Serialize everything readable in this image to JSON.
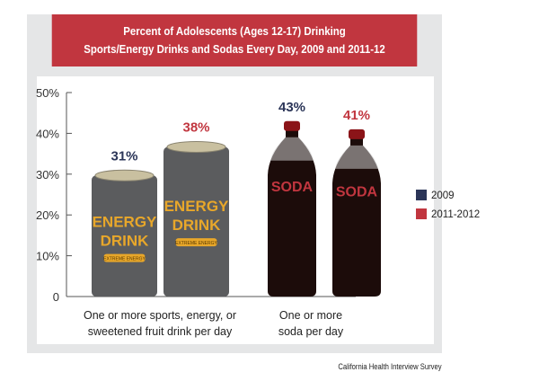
{
  "chart_data": {
    "type": "bar",
    "title_lines": [
      "Percent of Adolescents (Ages 12-17) Drinking",
      "Sports/Energy Drinks and Sodas Every Day, 2009 and 2011-12"
    ],
    "categories": [
      [
        "One or more sports, energy, or",
        "sweetened fruit drink per day"
      ],
      [
        "One or more",
        "soda per day"
      ]
    ],
    "series": [
      {
        "name": "2009",
        "color": "#2b3558",
        "values": [
          31,
          43
        ]
      },
      {
        "name": "2011-2012",
        "color": "#c1363f",
        "values": [
          38,
          41
        ]
      }
    ],
    "data_labels": [
      [
        "31%",
        "43%"
      ],
      [
        "38%",
        "41%"
      ]
    ],
    "y_ticks": [
      "0",
      "10%",
      "20%",
      "30%",
      "40%",
      "50%"
    ],
    "ylim": [
      0,
      50
    ],
    "legend_position": "right",
    "bar_images": [
      "energy-drink-can",
      "soda-bottle"
    ],
    "can_text": [
      "ENERGY",
      "DRINK",
      "EXTREME ENERGY"
    ],
    "bottle_text": "SODA",
    "source": "California Health Interview Survey"
  }
}
